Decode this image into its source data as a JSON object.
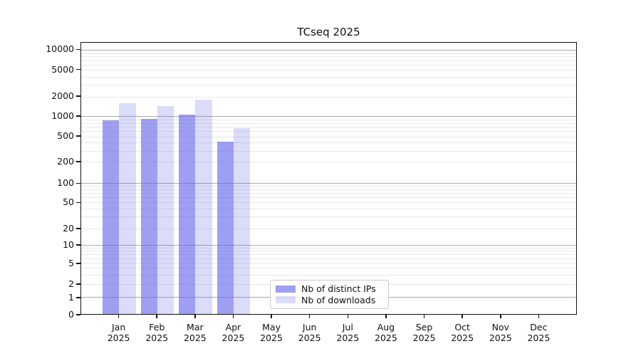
{
  "title": "TCseq 2025",
  "colors": {
    "background": "#ffffff",
    "axis": "#111111",
    "grid_major": "#ababab",
    "grid_minor": "#e9e9e9",
    "bar_distinct_ips": "rgba(100,100,232,0.62)",
    "bar_downloads": "rgba(100,100,232,0.235)"
  },
  "legend": {
    "items": [
      {
        "label": "Nb of distinct IPs"
      },
      {
        "label": "Nb of downloads"
      }
    ]
  },
  "x_axis": {
    "year": "2025",
    "months": [
      "Jan",
      "Feb",
      "Mar",
      "Apr",
      "May",
      "Jun",
      "Jul",
      "Aug",
      "Sep",
      "Oct",
      "Nov",
      "Dec"
    ]
  },
  "y_axis": {
    "ticks": [
      0,
      1,
      2,
      5,
      10,
      20,
      50,
      100,
      200,
      500,
      1000,
      2000,
      5000,
      10000
    ]
  },
  "chart_data": {
    "type": "bar",
    "title": "TCseq 2025",
    "categories": [
      "Jan 2025",
      "Feb 2025",
      "Mar 2025",
      "Apr 2025",
      "May 2025",
      "Jun 2025",
      "Jul 2025",
      "Aug 2025",
      "Sep 2025",
      "Oct 2025",
      "Nov 2025",
      "Dec 2025"
    ],
    "series": [
      {
        "name": "Nb of distinct IPs",
        "values": [
          870,
          910,
          1060,
          410,
          null,
          null,
          null,
          null,
          null,
          null,
          null,
          null
        ]
      },
      {
        "name": "Nb of downloads",
        "values": [
          1600,
          1450,
          1780,
          660,
          null,
          null,
          null,
          null,
          null,
          null,
          null,
          null
        ]
      }
    ],
    "xlabel": "",
    "ylabel": "",
    "yscale": "symlog",
    "ylim": [
      0,
      12600
    ],
    "yticks": [
      0,
      1,
      2,
      5,
      10,
      20,
      50,
      100,
      200,
      500,
      1000,
      2000,
      5000,
      10000
    ],
    "grid": true,
    "legend_position": "lower center"
  }
}
